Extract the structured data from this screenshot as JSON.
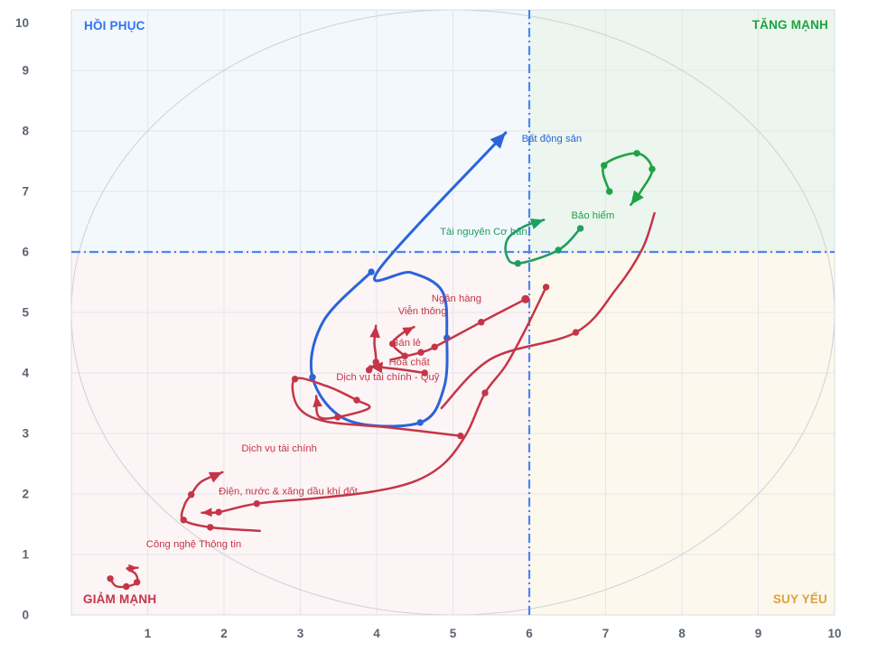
{
  "chart_data": {
    "type": "scatter",
    "title": "",
    "xlabel": "",
    "ylabel": "",
    "xlim": [
      0,
      10
    ],
    "ylim": [
      0,
      10
    ],
    "x_ticks": [
      1,
      2,
      3,
      4,
      5,
      6,
      7,
      8,
      9,
      10
    ],
    "y_ticks": [
      0,
      1,
      2,
      3,
      4,
      5,
      6,
      7,
      8,
      9,
      10
    ],
    "grid": true,
    "crosshair": {
      "x": 6,
      "y": 6,
      "color": "#4c86f0"
    },
    "ellipse": {
      "cx": 5,
      "cy": 5,
      "rx": 5,
      "ry": 5,
      "color": "#ccd1d8"
    },
    "quadrants": [
      {
        "id": "top-left",
        "label": "HỒI PHỤC",
        "text_color": "#2f74f1",
        "bg": "#f3f8fd"
      },
      {
        "id": "top-right",
        "label": "TĂNG MẠNH",
        "text_color": "#18a53c",
        "bg": "#ecf5ee"
      },
      {
        "id": "bottom-left",
        "label": "GIẢM MẠNH",
        "text_color": "#c43548",
        "bg": "#fcf4f5"
      },
      {
        "id": "bottom-right",
        "label": "SUY YẾU",
        "text_color": "#dfa13d",
        "bg": "#fcf8ed"
      }
    ],
    "series": [
      {
        "id": "bat-dong-san",
        "name": "Bất động sản",
        "color": "#2b64d9",
        "stroke": 3,
        "label": {
          "x": 5.9,
          "y": 7.82
        },
        "points": [
          [
            3.93,
            5.67
          ],
          [
            3.3,
            4.85
          ],
          [
            3.16,
            3.93
          ],
          [
            3.62,
            3.22
          ],
          [
            4.57,
            3.18
          ],
          [
            4.88,
            3.75
          ],
          [
            4.92,
            4.58
          ],
          [
            4.86,
            5.35
          ],
          [
            4.45,
            5.66
          ],
          [
            4.02,
            5.69
          ],
          [
            5.69,
            7.97
          ]
        ],
        "markers": [
          0,
          2,
          4,
          6
        ],
        "terminal": "arrow",
        "arrow_size": 17
      },
      {
        "id": "tai-nguyen-co-ban",
        "name": "Tài nguyên Cơ bản",
        "color": "#1f9e62",
        "stroke": 2.6,
        "label": {
          "x": 4.83,
          "y": 6.28
        },
        "points": [
          [
            6.67,
            6.39
          ],
          [
            6.38,
            6.03
          ],
          [
            5.85,
            5.81
          ],
          [
            5.7,
            5.95
          ],
          [
            5.72,
            6.22
          ],
          [
            5.93,
            6.42
          ],
          [
            6.19,
            6.53
          ]
        ],
        "markers": [
          0,
          1,
          2
        ],
        "terminal": "arrow",
        "arrow_size": 14
      },
      {
        "id": "bao-hiem",
        "name": "Bảo hiểm",
        "color": "#1da344",
        "stroke": 2.6,
        "label": {
          "x": 6.55,
          "y": 6.55
        },
        "points": [
          [
            7.05,
            7.0
          ],
          [
            6.98,
            7.43
          ],
          [
            7.41,
            7.63
          ],
          [
            7.61,
            7.37
          ],
          [
            7.46,
            7.0
          ],
          [
            7.33,
            6.78
          ]
        ],
        "markers": [
          0,
          1,
          2,
          3
        ],
        "terminal": "arrow",
        "arrow_size": 15
      },
      {
        "id": "ngan-hang",
        "name": "Ngân hàng",
        "color": "#c43548",
        "stroke": 2.5,
        "label": {
          "x": 4.72,
          "y": 5.18
        },
        "points": [
          [
            4.19,
            4.22
          ],
          [
            4.58,
            4.34
          ],
          [
            4.76,
            4.43
          ],
          [
            5.37,
            4.84
          ],
          [
            5.95,
            5.22
          ]
        ],
        "markers": [
          1,
          2,
          3,
          4
        ],
        "terminal": "dot"
      },
      {
        "id": "ngan-hang-2",
        "name": "Ngân hàng",
        "color": "#c43548",
        "stroke": 2.5,
        "label": null,
        "points": [
          [
            4.85,
            3.42
          ],
          [
            5.51,
            4.24
          ],
          [
            6.61,
            4.67
          ],
          [
            7.14,
            5.39
          ],
          [
            7.48,
            6.05
          ],
          [
            7.64,
            6.64
          ]
        ],
        "markers": [
          2
        ],
        "terminal": "dot"
      },
      {
        "id": "vien-thong",
        "name": "Viễn thông",
        "color": "#c43548",
        "stroke": 2.5,
        "label": {
          "x": 4.28,
          "y": 4.97
        },
        "points": [
          [
            3.9,
            4.05
          ],
          [
            3.99,
            4.18
          ],
          [
            3.97,
            4.5
          ],
          [
            3.99,
            4.78
          ]
        ],
        "markers": [
          0,
          1
        ],
        "terminal": "arrow",
        "arrow_size": 13
      },
      {
        "id": "ban-le",
        "name": "Bán lẻ",
        "color": "#c43548",
        "stroke": 2.5,
        "label": {
          "x": 4.2,
          "y": 4.45
        },
        "points": [
          [
            4.37,
            4.28
          ],
          [
            4.21,
            4.48
          ],
          [
            4.34,
            4.66
          ],
          [
            4.49,
            4.76
          ]
        ],
        "markers": [
          0,
          1
        ],
        "terminal": "arrow",
        "arrow_size": 12
      },
      {
        "id": "hoa-chat",
        "name": "Hóa chất",
        "color": "#c43548",
        "stroke": 2.5,
        "label": {
          "x": 4.16,
          "y": 4.13
        },
        "points": [
          [
            4.63,
            4.0
          ],
          [
            4.3,
            4.06
          ],
          [
            3.91,
            4.11
          ]
        ],
        "markers": [
          0
        ],
        "terminal": "arrow",
        "arrow_size": 14
      },
      {
        "id": "dich-vu-tai-chinh-quy",
        "name": "Dịch vụ tài chính - Quỹ",
        "color": "#c43548",
        "stroke": 2.5,
        "label": {
          "x": 3.47,
          "y": 3.88
        },
        "points": [
          [
            5.1,
            2.96
          ],
          [
            4.15,
            3.1
          ],
          [
            3.33,
            3.2
          ],
          [
            2.97,
            3.44
          ],
          [
            2.93,
            3.9
          ],
          [
            3.35,
            3.78
          ],
          [
            3.74,
            3.55
          ],
          [
            3.9,
            3.42
          ],
          [
            3.49,
            3.27
          ],
          [
            3.24,
            3.28
          ],
          [
            3.21,
            3.62
          ]
        ],
        "markers": [
          0,
          4,
          6,
          8
        ],
        "terminal": "arrow",
        "arrow_size": 12
      },
      {
        "id": "dich-vu-tai-chinh",
        "name": "Dịch vụ tài chính",
        "color": "#c43548",
        "stroke": 2.5,
        "label": {
          "x": 2.23,
          "y": 2.7
        },
        "points": [
          [
            2.47,
            1.39
          ],
          [
            1.82,
            1.45
          ],
          [
            1.47,
            1.57
          ],
          [
            1.48,
            1.81
          ],
          [
            1.57,
            1.99
          ],
          [
            1.7,
            2.2
          ],
          [
            1.98,
            2.36
          ]
        ],
        "markers": [
          1,
          2,
          4
        ],
        "terminal": "arrow",
        "arrow_size": 14
      },
      {
        "id": "dien-nuoc-xang-dau",
        "name": "Điện, nước & xăng dầu khí đốt",
        "color": "#c43548",
        "stroke": 2.5,
        "label": {
          "x": 1.93,
          "y": 1.99
        },
        "points": [
          [
            6.22,
            5.42
          ],
          [
            5.95,
            4.72
          ],
          [
            5.69,
            4.12
          ],
          [
            5.42,
            3.67
          ],
          [
            5.18,
            3.0
          ],
          [
            4.88,
            2.5
          ],
          [
            4.48,
            2.2
          ],
          [
            3.9,
            2.03
          ],
          [
            3.2,
            1.93
          ],
          [
            2.43,
            1.84
          ],
          [
            1.93,
            1.7
          ],
          [
            1.71,
            1.69
          ]
        ],
        "markers": [
          0,
          3,
          9,
          10
        ],
        "terminal": "arrow",
        "arrow_size": 11
      },
      {
        "id": "cong-nghe-thong-tin",
        "name": "Công nghệ Thông tin",
        "color": "#c43548",
        "stroke": 2.4,
        "label": {
          "x": 0.98,
          "y": 1.12
        },
        "points": [
          [
            0.51,
            0.6
          ],
          [
            0.58,
            0.48
          ],
          [
            0.72,
            0.47
          ],
          [
            0.86,
            0.54
          ],
          [
            0.84,
            0.68
          ],
          [
            0.73,
            0.77
          ],
          [
            0.87,
            0.78
          ]
        ],
        "markers": [
          0,
          2,
          3
        ],
        "terminal": "arrow",
        "arrow_size": 10
      }
    ]
  },
  "layout_colors": {
    "grid": "#e3e6ea",
    "plot_border": "#d9dce1",
    "tick_text": "#5a6470",
    "background": "#ffffff"
  }
}
